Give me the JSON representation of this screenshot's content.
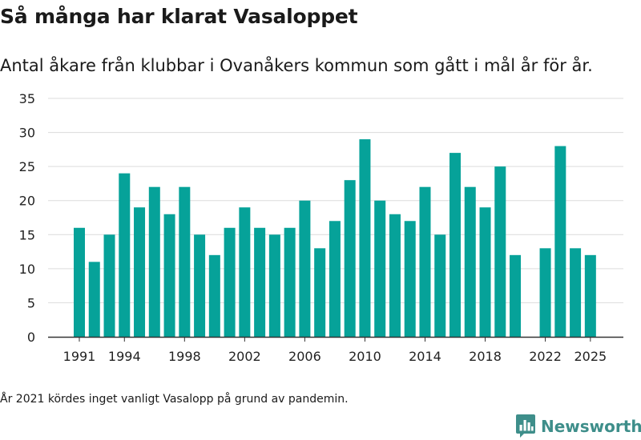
{
  "title": "Så många har klarat Vasaloppet",
  "subtitle": "Antal åkare från klubbar i Ovanåkers kommun som gått i mål år för år.",
  "footnote": "År 2021 kördes inget vanligt Vasalopp på grund av pandemin.",
  "brand": {
    "name": "Newsworthy",
    "color": "#3e8e8a"
  },
  "colors": {
    "bar": "#06a299",
    "grid": "#dcdcdc",
    "axis": "#333333",
    "text": "#222222"
  },
  "chart_data": {
    "type": "bar",
    "title": "Så många har klarat Vasaloppet",
    "xlabel": "",
    "ylabel": "",
    "ylim": [
      0,
      35
    ],
    "yticks": [
      0,
      5,
      10,
      15,
      20,
      25,
      30,
      35
    ],
    "xticks": [
      1991,
      1994,
      1998,
      2002,
      2006,
      2010,
      2014,
      2018,
      2022,
      2025
    ],
    "grid": true,
    "categories": [
      1991,
      1992,
      1993,
      1994,
      1995,
      1996,
      1997,
      1998,
      1999,
      2000,
      2001,
      2002,
      2003,
      2004,
      2005,
      2006,
      2007,
      2008,
      2009,
      2010,
      2011,
      2012,
      2013,
      2014,
      2015,
      2016,
      2017,
      2018,
      2019,
      2020,
      2021,
      2022,
      2023,
      2024,
      2025
    ],
    "values": [
      16,
      11,
      15,
      24,
      19,
      22,
      18,
      22,
      15,
      12,
      16,
      19,
      16,
      15,
      16,
      20,
      13,
      17,
      23,
      29,
      20,
      18,
      17,
      22,
      15,
      27,
      22,
      19,
      25,
      12,
      null,
      13,
      28,
      13,
      12
    ]
  }
}
